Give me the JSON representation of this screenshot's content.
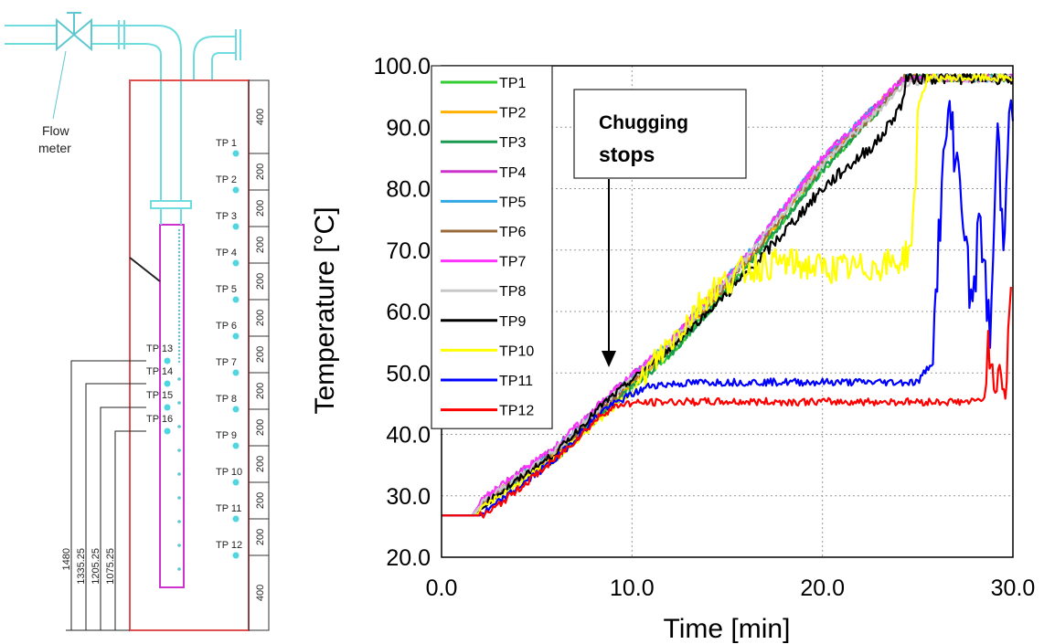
{
  "diagram": {
    "flow_meter_label_line1": "Flow",
    "flow_meter_label_line2": "meter",
    "right_dimensions": [
      "400",
      "200",
      "200",
      "200",
      "200",
      "200",
      "200",
      "200",
      "200",
      "200",
      "200",
      "200",
      "400"
    ],
    "right_probes": [
      "TP 1",
      "TP 2",
      "TP 3",
      "TP 4",
      "TP 5",
      "TP 6",
      "TP 7",
      "TP 8",
      "TP 9",
      "TP 10",
      "TP 11",
      "TP 12"
    ],
    "left_probes": [
      "TP 13",
      "TP 14",
      "TP 15",
      "TP 16"
    ],
    "left_dimensions": [
      "1480",
      "1335.25",
      "1205.25",
      "1075.25"
    ]
  },
  "chart_data": {
    "type": "line",
    "title": "",
    "xlabel": "Time [min]",
    "ylabel": "Temperature [°C]",
    "xlim": [
      0,
      30
    ],
    "ylim": [
      20,
      100
    ],
    "x_ticks": [
      "0.0",
      "10.0",
      "20.0",
      "30.0"
    ],
    "y_ticks": [
      "20.0",
      "30.0",
      "40.0",
      "50.0",
      "60.0",
      "70.0",
      "80.0",
      "90.0",
      "100.0"
    ],
    "grid": "dotted",
    "legend_position": "upper-left",
    "annotation": {
      "text_line1": "Chugging",
      "text_line2": "stops",
      "arrow_to": [
        9.0,
        47.5
      ]
    },
    "series": [
      {
        "name": "TP1",
        "color": "#33cc33",
        "points": [
          [
            0,
            26.8
          ],
          [
            1.6,
            26.8
          ],
          [
            2.2,
            29
          ],
          [
            6,
            37
          ],
          [
            8.5,
            44
          ],
          [
            12,
            53
          ],
          [
            16,
            67
          ],
          [
            20,
            83
          ],
          [
            23,
            93
          ],
          [
            24.3,
            98
          ],
          [
            26,
            98
          ],
          [
            30,
            98
          ]
        ]
      },
      {
        "name": "TP2",
        "color": "#ffb000",
        "points": [
          [
            0,
            26.8
          ],
          [
            1.6,
            26.8
          ],
          [
            2.2,
            29
          ],
          [
            6,
            37
          ],
          [
            8.5,
            44
          ],
          [
            12,
            54
          ],
          [
            16,
            68
          ],
          [
            20,
            84
          ],
          [
            23,
            94
          ],
          [
            24.3,
            98
          ],
          [
            26,
            98
          ],
          [
            30,
            98
          ]
        ]
      },
      {
        "name": "TP3",
        "color": "#1a9a50",
        "points": [
          [
            0,
            26.8
          ],
          [
            1.6,
            26.8
          ],
          [
            2.2,
            29
          ],
          [
            6,
            36
          ],
          [
            8.5,
            43.5
          ],
          [
            12,
            53
          ],
          [
            16,
            67
          ],
          [
            20,
            83
          ],
          [
            23,
            93
          ],
          [
            24.3,
            98
          ],
          [
            26,
            98
          ],
          [
            30,
            98
          ]
        ]
      },
      {
        "name": "TP4",
        "color": "#cc33cc",
        "points": [
          [
            0,
            26.8
          ],
          [
            1.6,
            26.8
          ],
          [
            2.2,
            29.5
          ],
          [
            6,
            38
          ],
          [
            8.5,
            45.5
          ],
          [
            12,
            55
          ],
          [
            16,
            69
          ],
          [
            20,
            85
          ],
          [
            23,
            94
          ],
          [
            24.3,
            98
          ],
          [
            26,
            98
          ],
          [
            30,
            98
          ]
        ]
      },
      {
        "name": "TP5",
        "color": "#33a6e6",
        "points": [
          [
            0,
            26.8
          ],
          [
            1.6,
            26.8
          ],
          [
            2.2,
            29
          ],
          [
            6,
            37.5
          ],
          [
            8.5,
            45
          ],
          [
            12,
            55
          ],
          [
            16,
            69
          ],
          [
            20,
            85
          ],
          [
            23,
            94
          ],
          [
            24.3,
            98
          ],
          [
            26,
            98
          ],
          [
            30,
            98
          ]
        ]
      },
      {
        "name": "TP6",
        "color": "#9a6a3a",
        "points": [
          [
            0,
            26.8
          ],
          [
            1.6,
            26.8
          ],
          [
            2.2,
            29
          ],
          [
            6,
            37
          ],
          [
            8.5,
            44.5
          ],
          [
            12,
            54
          ],
          [
            16,
            68
          ],
          [
            20,
            84
          ],
          [
            23,
            93
          ],
          [
            24.3,
            98
          ],
          [
            26,
            98
          ],
          [
            30,
            98
          ]
        ]
      },
      {
        "name": "TP7",
        "color": "#ff33ff",
        "points": [
          [
            0,
            26.8
          ],
          [
            1.6,
            26.8
          ],
          [
            2.2,
            29.5
          ],
          [
            6,
            38
          ],
          [
            8.5,
            45.5
          ],
          [
            12,
            55
          ],
          [
            16,
            69
          ],
          [
            20,
            85
          ],
          [
            23,
            94
          ],
          [
            24.3,
            98
          ],
          [
            26,
            98
          ],
          [
            30,
            98
          ]
        ]
      },
      {
        "name": "TP8",
        "color": "#c8c8c8",
        "points": [
          [
            0,
            26.8
          ],
          [
            1.6,
            26.8
          ],
          [
            2.2,
            29
          ],
          [
            6,
            37.5
          ],
          [
            8.5,
            45
          ],
          [
            12,
            54.5
          ],
          [
            16,
            68.5
          ],
          [
            20,
            84
          ],
          [
            23,
            93
          ],
          [
            24.3,
            97
          ],
          [
            26,
            98
          ],
          [
            30,
            98
          ]
        ]
      },
      {
        "name": "TP9",
        "color": "#000000",
        "points": [
          [
            0,
            26.8
          ],
          [
            1.8,
            26.8
          ],
          [
            2.4,
            29
          ],
          [
            6,
            37
          ],
          [
            8.5,
            45
          ],
          [
            12,
            54
          ],
          [
            16,
            66
          ],
          [
            20,
            80
          ],
          [
            23,
            88
          ],
          [
            24.2,
            94
          ],
          [
            24.4,
            98
          ],
          [
            26,
            98
          ],
          [
            30,
            98
          ]
        ]
      },
      {
        "name": "TP10",
        "color": "#ffff00",
        "points": [
          [
            0,
            26.8
          ],
          [
            1.8,
            26.8
          ],
          [
            2.4,
            28.5
          ],
          [
            6,
            36
          ],
          [
            8.5,
            43
          ],
          [
            10,
            47
          ],
          [
            12,
            55
          ],
          [
            14,
            63
          ],
          [
            16,
            67
          ],
          [
            18,
            68
          ],
          [
            20,
            67
          ],
          [
            22,
            67
          ],
          [
            24,
            68
          ],
          [
            24.6,
            70
          ],
          [
            24.9,
            80
          ],
          [
            25,
            93
          ],
          [
            25.5,
            98
          ],
          [
            30,
            98
          ]
        ]
      },
      {
        "name": "TP11",
        "color": "#0000ff",
        "points": [
          [
            0,
            26.8
          ],
          [
            2,
            26.8
          ],
          [
            2.6,
            28
          ],
          [
            6,
            36
          ],
          [
            8.5,
            44
          ],
          [
            10,
            46.5
          ],
          [
            11,
            48
          ],
          [
            14,
            48.5
          ],
          [
            18,
            48.5
          ],
          [
            22,
            48.5
          ],
          [
            25,
            48.5
          ],
          [
            25.8,
            52
          ],
          [
            26.1,
            72
          ],
          [
            26.6,
            93
          ],
          [
            27.3,
            80
          ],
          [
            27.8,
            60
          ],
          [
            28.3,
            75
          ],
          [
            28.8,
            55
          ],
          [
            29.2,
            90
          ],
          [
            29.5,
            70
          ],
          [
            29.8,
            96
          ],
          [
            30,
            91
          ]
        ]
      },
      {
        "name": "TP12",
        "color": "#ff0000",
        "points": [
          [
            0,
            26.8
          ],
          [
            2.2,
            26.8
          ],
          [
            2.8,
            28
          ],
          [
            6,
            36
          ],
          [
            8.5,
            43.5
          ],
          [
            9.5,
            45
          ],
          [
            12,
            45.3
          ],
          [
            16,
            45.3
          ],
          [
            20,
            45.3
          ],
          [
            24,
            45.3
          ],
          [
            28,
            45.3
          ],
          [
            28.5,
            46
          ],
          [
            28.7,
            55
          ],
          [
            29,
            47
          ],
          [
            29.3,
            52
          ],
          [
            29.6,
            46
          ],
          [
            29.9,
            64
          ]
        ]
      }
    ]
  }
}
